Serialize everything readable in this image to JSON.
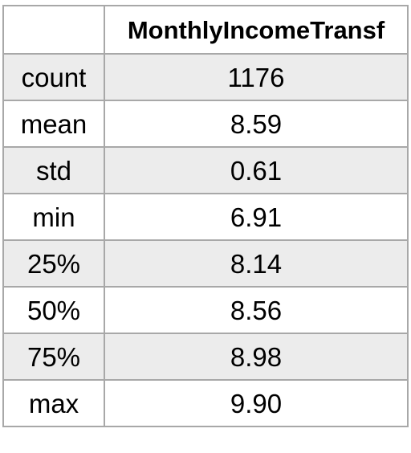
{
  "table": {
    "corner_header": "",
    "column_header": "MonthlyIncomeTransf",
    "rows": [
      {
        "label": "count",
        "value": "1176"
      },
      {
        "label": "mean",
        "value": "8.59"
      },
      {
        "label": "std",
        "value": "0.61"
      },
      {
        "label": "min",
        "value": "6.91"
      },
      {
        "label": "25%",
        "value": "8.14"
      },
      {
        "label": "50%",
        "value": "8.56"
      },
      {
        "label": "75%",
        "value": "8.98"
      },
      {
        "label": "max",
        "value": "9.90"
      }
    ],
    "colors": {
      "border": "#a8a8a8",
      "shaded_row": "#ececec",
      "plain_row": "#ffffff"
    }
  }
}
